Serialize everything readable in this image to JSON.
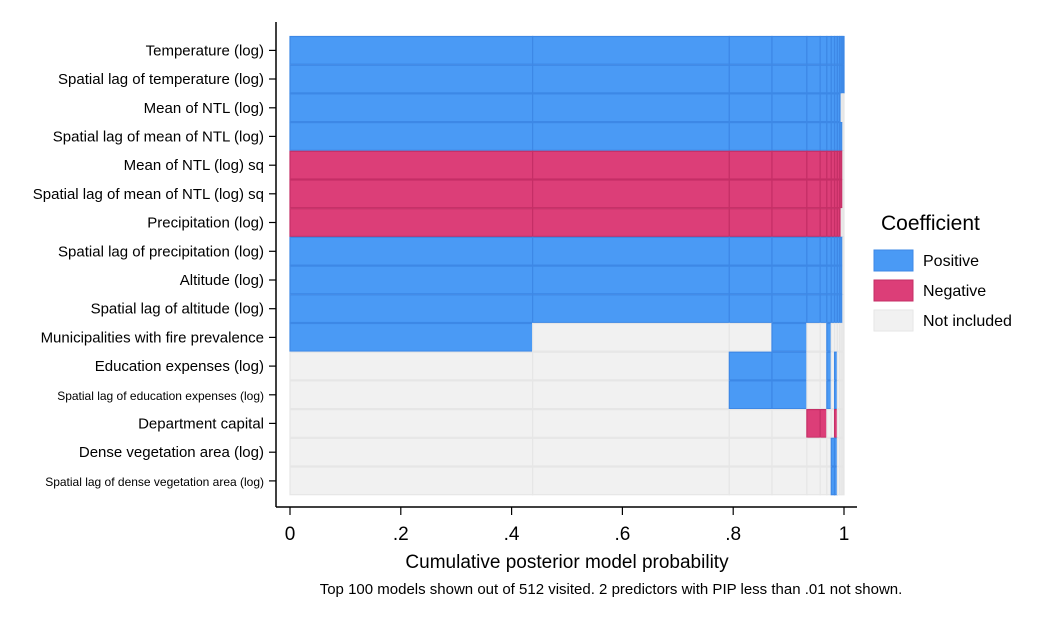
{
  "chart_data": {
    "type": "heatmap",
    "title": "",
    "xlabel": "Cumulative posterior model probability",
    "ylabel": "",
    "xlim": [
      0,
      1
    ],
    "x_ticks": [
      {
        "value": 0,
        "label": "0"
      },
      {
        "value": 0.2,
        "label": ".2"
      },
      {
        "value": 0.4,
        "label": ".4"
      },
      {
        "value": 0.6,
        "label": ".6"
      },
      {
        "value": 0.8,
        "label": ".8"
      },
      {
        "value": 1,
        "label": "1"
      }
    ],
    "note": "Top 100 models shown out of 512 visited. 2 predictors with PIP less than .01 not shown.",
    "legend": {
      "title": "Coefficient",
      "placement": "right",
      "entries": [
        {
          "label": "Positive",
          "color": "#4a9af5",
          "code": "P"
        },
        {
          "label": "Negative",
          "color": "#dc3e78",
          "code": "N"
        },
        {
          "label": "Not included",
          "color": "#f1f1f1",
          "code": "0"
        }
      ]
    },
    "model_boundaries": [
      0,
      0.438,
      0.793,
      0.87,
      0.933,
      0.957,
      0.969,
      0.977,
      0.983,
      0.988,
      0.992,
      0.995,
      0.998,
      1.0
    ],
    "rows": [
      {
        "label": "Temperature (log)",
        "cells": "PPPPPPPPPPPPP"
      },
      {
        "label": "Spatial lag of temperature (log)",
        "cells": "PPPPPPPPPPPPP"
      },
      {
        "label": "Mean of NTL (log)",
        "cells": "PPPPPPPPPPP00"
      },
      {
        "label": "Spatial lag of mean of NTL (log)",
        "cells": "PPPPPPPPPPPP0"
      },
      {
        "label": "Mean of NTL (log) sq",
        "cells": "NNNNNNNNNNNN0"
      },
      {
        "label": "Spatial lag of mean of NTL (log) sq",
        "cells": "NNNNNNNNNNNN0"
      },
      {
        "label": "Precipitation (log)",
        "cells": "NNNNNNNNNNN00"
      },
      {
        "label": "Spatial lag of precipitation (log)",
        "cells": "PPPPPPPPPPPP0"
      },
      {
        "label": "Altitude (log)",
        "cells": "PPPPPPPPPPPP0"
      },
      {
        "label": "Spatial lag of altitude (log)",
        "cells": "PPPPPPPPPPPP0"
      },
      {
        "label": "Municipalities with fire prevalence",
        "cells": "P00P00P000000"
      },
      {
        "label": "Education expenses (log)",
        "cells": "00PP00P0P0000"
      },
      {
        "label": "Spatial lag of education expenses (log)",
        "cells": "00PP00P0P0000",
        "small": true
      },
      {
        "label": "Department capital",
        "cells": "0000NN00N0000"
      },
      {
        "label": "Dense vegetation area (log)",
        "cells": "0000000PP0000"
      },
      {
        "label": "Spatial lag of dense vegetation area (log)",
        "cells": "0000000PP0000",
        "small": true
      }
    ]
  }
}
